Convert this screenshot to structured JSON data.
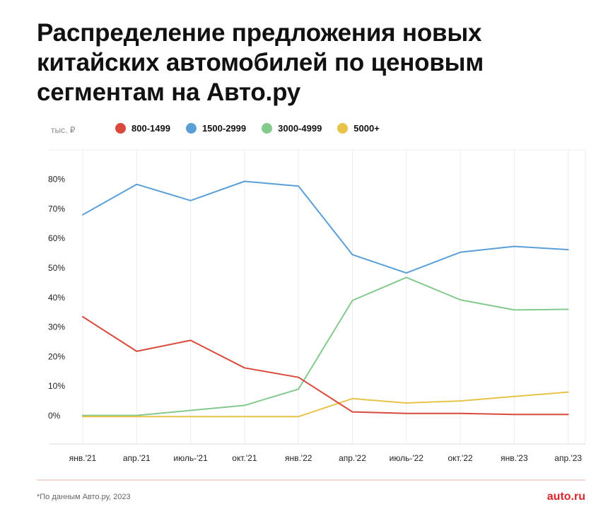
{
  "title_lines": [
    "Распределение предложения новых",
    "китайских автомобилей по ценовым",
    "сегментам на Авто.ру"
  ],
  "footnote": "*По данным Авто.ру, 2023",
  "brand": "auto.ru",
  "colors": {
    "red": "#d94a3d",
    "blue": "#5b9fd8",
    "green": "#84c98d",
    "yellow": "#e8c34a",
    "grid": "#ececec",
    "baseline": "#e7b3ad",
    "brand": "#d8262c"
  },
  "chart_data": {
    "type": "line",
    "unit_label": "тыс. ₽",
    "title": "",
    "xlabel": "",
    "ylabel": "",
    "ylim": [
      -9,
      90
    ],
    "y_ticks": [
      0,
      10,
      20,
      30,
      40,
      50,
      60,
      70,
      80
    ],
    "y_tick_labels": [
      "0%",
      "10%",
      "20%",
      "30%",
      "40%",
      "50%",
      "60%",
      "70%",
      "80%"
    ],
    "categories": [
      "янв.'21",
      "апр.'21",
      "июль-'21",
      "окт.'21",
      "янв.'22",
      "апр.'22",
      "июль-'22",
      "окт.'22",
      "янв.'23",
      "апр.'23"
    ],
    "legend_position": "top-left",
    "series": [
      {
        "name": "800-1499",
        "color": "#d94a3d",
        "values": [
          33.5,
          21.8,
          25.5,
          16.2,
          13.0,
          1.3,
          0.8,
          0.8,
          0.4,
          0.4
        ]
      },
      {
        "name": "1500-2999",
        "color": "#5b9fd8",
        "values": [
          68.0,
          78.3,
          72.8,
          79.3,
          77.7,
          54.5,
          48.3,
          55.3,
          57.3,
          56.2
        ]
      },
      {
        "name": "3000-4999",
        "color": "#84c98d",
        "values": [
          0.1,
          0.1,
          1.8,
          3.5,
          9.0,
          39.0,
          46.8,
          39.2,
          35.8,
          36.0
        ]
      },
      {
        "name": "5000+",
        "color": "#e8c34a",
        "values": [
          -0.3,
          -0.3,
          -0.3,
          -0.3,
          -0.3,
          5.8,
          4.3,
          5.0,
          6.5,
          8.0
        ]
      }
    ]
  }
}
